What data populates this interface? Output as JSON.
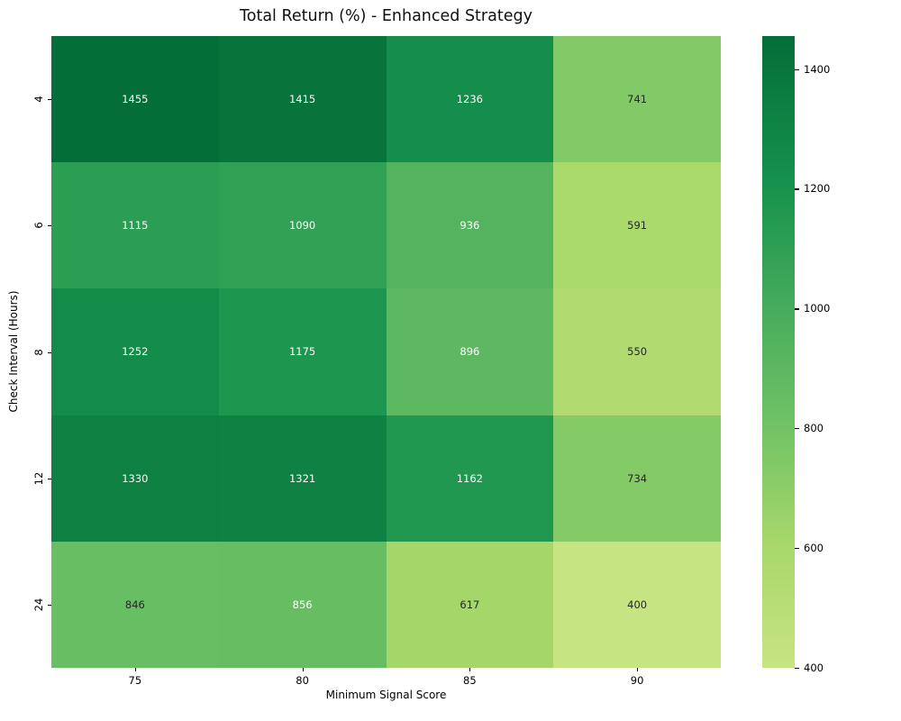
{
  "title": "Total Return (%) - Enhanced Strategy",
  "chart_data": {
    "type": "heatmap",
    "title": "Total Return (%) - Enhanced Strategy",
    "xlabel": "Minimum Signal Score",
    "ylabel": "Check Interval (Hours)",
    "x_categories": [
      "75",
      "80",
      "85",
      "90"
    ],
    "y_categories": [
      "4",
      "6",
      "8",
      "12",
      "24"
    ],
    "values": [
      [
        1455,
        1415,
        1236,
        741
      ],
      [
        1115,
        1090,
        936,
        591
      ],
      [
        1252,
        1175,
        896,
        550
      ],
      [
        1330,
        1321,
        1162,
        734
      ],
      [
        846,
        856,
        617,
        400
      ]
    ],
    "annot_text_colors": [
      [
        "light",
        "light",
        "light",
        "dark"
      ],
      [
        "light",
        "light",
        "light",
        "dark"
      ],
      [
        "light",
        "light",
        "light",
        "dark"
      ],
      [
        "light",
        "light",
        "light",
        "dark"
      ],
      [
        "dark",
        "light",
        "dark",
        "dark"
      ]
    ],
    "annotation_light_color": "#ffffff",
    "annotation_dark_color": "#262626",
    "colormap_stops": [
      [
        400,
        "#c7e483"
      ],
      [
        600,
        "#a9d86b"
      ],
      [
        800,
        "#72c365"
      ],
      [
        1000,
        "#46ac5c"
      ],
      [
        1200,
        "#17934d"
      ],
      [
        1455,
        "#046e38"
      ]
    ],
    "colorbar": {
      "vmin": 400,
      "vmax": 1455,
      "ticks": [
        "400",
        "600",
        "800",
        "1000",
        "1200",
        "1400"
      ]
    },
    "legend_position": "right",
    "grid": false
  }
}
